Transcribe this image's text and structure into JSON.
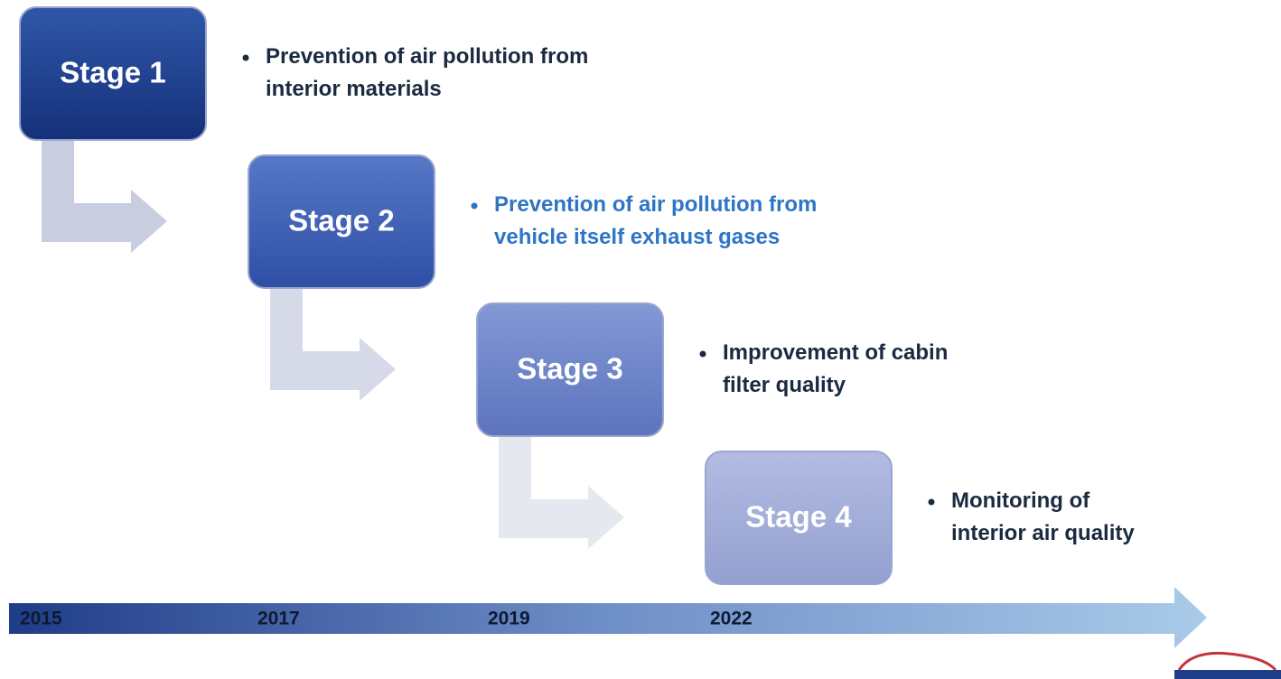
{
  "stages": [
    {
      "label": "Stage 1",
      "bullet": [
        "Prevention of air pollution from",
        "interior materials"
      ]
    },
    {
      "label": "Stage 2",
      "bullet": [
        "Prevention of air pollution from",
        "vehicle itself exhaust gases"
      ]
    },
    {
      "label": "Stage 3",
      "bullet": [
        "Improvement of cabin",
        "filter quality"
      ]
    },
    {
      "label": "Stage 4",
      "bullet": [
        "Monitoring of",
        "interior air quality"
      ]
    }
  ],
  "timeline": {
    "years": [
      "2015",
      "2017",
      "2019",
      "2022"
    ]
  }
}
